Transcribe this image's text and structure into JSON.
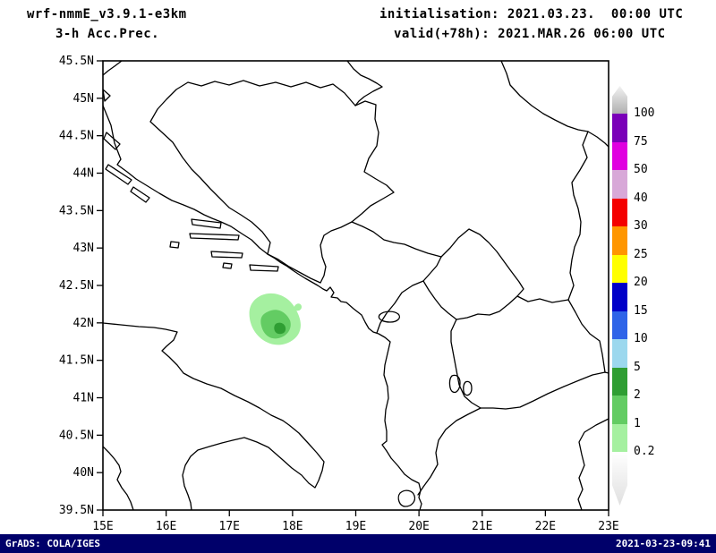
{
  "header": {
    "model": "wrf-nmmE_v3.9.1-e3km",
    "product": "3-h Acc.Prec.",
    "init_line": "initialisation: 2021.03.23.  00:00 UTC",
    "valid_line": "valid(+78h): 2021.MAR.26 06:00 UTC"
  },
  "axes": {
    "x_ticks": [
      "15E",
      "16E",
      "17E",
      "18E",
      "19E",
      "20E",
      "21E",
      "22E",
      "23E"
    ],
    "y_ticks": [
      "45.5N",
      "45N",
      "44.5N",
      "44N",
      "43.5N",
      "43N",
      "42.5N",
      "42N",
      "41.5N",
      "41N",
      "40.5N",
      "40N",
      "39.5N"
    ]
  },
  "legend": {
    "boundaries": [
      "100",
      "75",
      "50",
      "40",
      "30",
      "25",
      "20",
      "15",
      "10",
      "5",
      "2",
      "1",
      "0.2"
    ],
    "segment_colors": [
      "#7a00b8",
      "#e000e0",
      "#d8a8d8",
      "#f40000",
      "#ff9600",
      "#ffff00",
      "#0000c8",
      "#2e64e8",
      "#9cd8ee",
      "#2f9e33",
      "#63cc63",
      "#a5f0a0"
    ],
    "above_max_color": "#b0b0b0",
    "below_min_color": "#e0e0e0"
  },
  "map": {
    "precip_colors": {
      "light": "#a5f0a0",
      "medium": "#63cc63",
      "dark": "#2f9e33"
    },
    "precip_area": {
      "approx_location": "42N 17.7E (southern Adriatic)",
      "levels_shown": [
        "0.2-1",
        "1-2",
        "2-5"
      ]
    }
  },
  "footer": {
    "left": "GrADS: COLA/IGES",
    "right": "2021-03-23-09:41"
  }
}
